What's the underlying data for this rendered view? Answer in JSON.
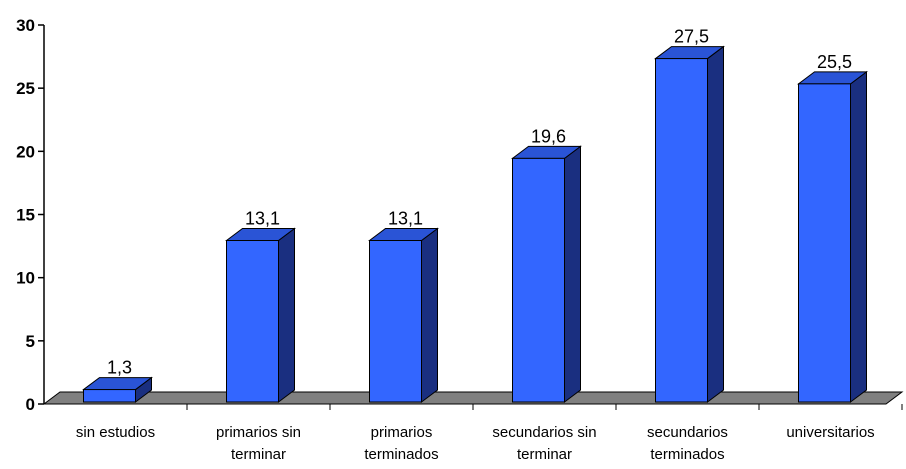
{
  "chart_data": {
    "type": "bar",
    "style": "3d-column",
    "categories": [
      [
        "sin estudios"
      ],
      [
        "primarios sin",
        "terminar"
      ],
      [
        "primarios",
        "terminados"
      ],
      [
        "secundarios sin",
        "terminar"
      ],
      [
        "secundarios",
        "terminados"
      ],
      [
        "universitarios"
      ]
    ],
    "values": [
      1.3,
      13.1,
      13.1,
      19.6,
      27.5,
      25.5
    ],
    "value_labels": [
      "1,3",
      "13,1",
      "13,1",
      "19,6",
      "27,5",
      "25,5"
    ],
    "title": "",
    "xlabel": "",
    "ylabel": "",
    "ylim": [
      0,
      30
    ],
    "yticks": [
      0,
      5,
      10,
      15,
      20,
      25,
      30
    ],
    "grid": false,
    "legend": "none",
    "colors": {
      "bar_front": "#3366ff",
      "bar_top": "#2a54d6",
      "bar_side": "#1a2f80",
      "floor": "#808080",
      "axis": "#000000"
    }
  }
}
